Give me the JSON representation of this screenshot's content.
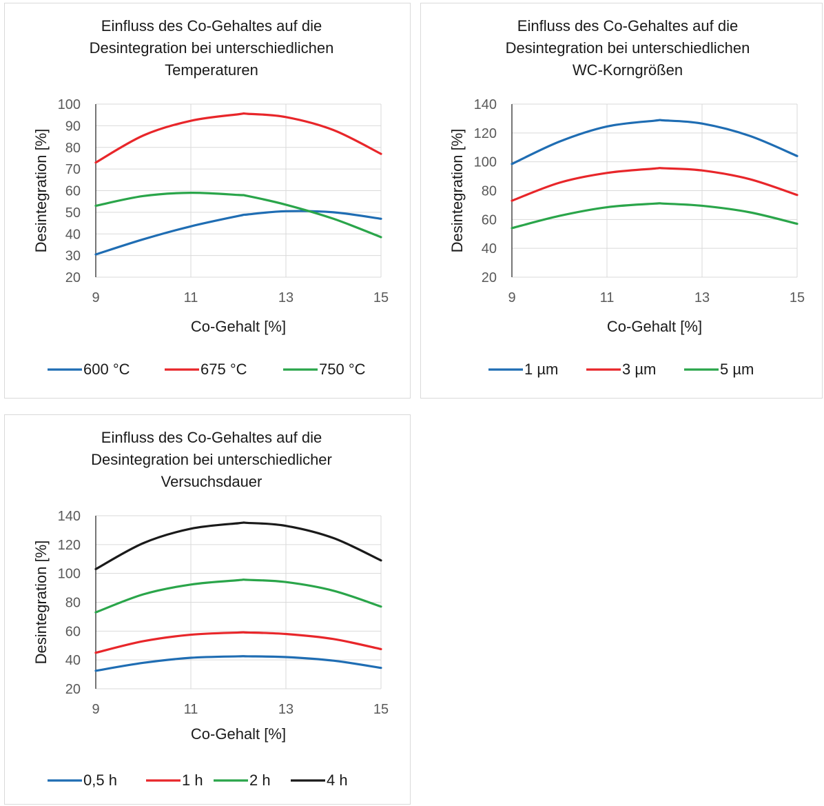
{
  "chart_data": [
    {
      "type": "line",
      "title_lines": [
        "Einfluss des Co-Gehaltes auf die",
        "Desintegration bei unterschiedlichen",
        "Temperaturen"
      ],
      "xlabel": "Co-Gehalt [%]",
      "ylabel": "Desintegration [%]",
      "xlim": [
        9,
        15
      ],
      "ylim": [
        20,
        100
      ],
      "xticks": [
        9,
        11,
        13,
        15
      ],
      "yticks": [
        20,
        30,
        40,
        50,
        60,
        70,
        80,
        90,
        100
      ],
      "grid": true,
      "legend_position": "bottom",
      "x": [
        9,
        10,
        11,
        12,
        12.2,
        13,
        14,
        15
      ],
      "series": [
        {
          "name": "600 °C",
          "color": "#1f6db3",
          "values": [
            30.5,
            37.5,
            43.5,
            48.3,
            49.0,
            50.5,
            50.0,
            47.0
          ]
        },
        {
          "name": "675 °C",
          "color": "#e8262a",
          "values": [
            73.0,
            85.5,
            92.3,
            95.3,
            95.5,
            94.0,
            88.0,
            77.0
          ]
        },
        {
          "name": "750 °C",
          "color": "#2aa54a",
          "values": [
            53.0,
            57.5,
            59.0,
            58.0,
            57.5,
            53.5,
            47.0,
            38.5
          ]
        }
      ]
    },
    {
      "type": "line",
      "title_lines": [
        "Einfluss des Co-Gehaltes auf die",
        "Desintegration bei unterschiedlichen",
        "WC-Korngrößen"
      ],
      "xlabel": "Co-Gehalt [%]",
      "ylabel": "Desintegration [%]",
      "xlim": [
        9,
        15
      ],
      "ylim": [
        20,
        140
      ],
      "xticks": [
        9,
        11,
        13,
        15
      ],
      "yticks": [
        20,
        40,
        60,
        80,
        100,
        120,
        140
      ],
      "grid": true,
      "legend_position": "bottom",
      "x": [
        9,
        10,
        11,
        12,
        12.2,
        13,
        14,
        15
      ],
      "series": [
        {
          "name": "1 µm",
          "color": "#1f6db3",
          "values": [
            98.5,
            114.0,
            124.5,
            128.5,
            128.7,
            126.5,
            118.0,
            104.0
          ]
        },
        {
          "name": "3 µm",
          "color": "#e8262a",
          "values": [
            73.0,
            85.5,
            92.3,
            95.3,
            95.5,
            94.0,
            88.0,
            77.0
          ]
        },
        {
          "name": "5 µm",
          "color": "#2aa54a",
          "values": [
            54.0,
            62.5,
            68.5,
            71.0,
            71.0,
            69.5,
            65.0,
            57.0
          ]
        }
      ]
    },
    {
      "type": "line",
      "title_lines": [
        "Einfluss des Co-Gehaltes auf die",
        "Desintegration bei unterschiedlicher",
        "Versuchsdauer"
      ],
      "xlabel": "Co-Gehalt [%]",
      "ylabel": "Desintegration [%]",
      "xlim": [
        9,
        15
      ],
      "ylim": [
        20,
        140
      ],
      "xticks": [
        9,
        11,
        13,
        15
      ],
      "yticks": [
        20,
        40,
        60,
        80,
        100,
        120,
        140
      ],
      "grid": true,
      "legend_position": "bottom",
      "x": [
        9,
        10,
        11,
        12,
        12.2,
        13,
        14,
        15
      ],
      "series": [
        {
          "name": "0,5 h",
          "color": "#1f6db3",
          "values": [
            32.5,
            38.0,
            41.5,
            42.5,
            42.5,
            42.0,
            39.5,
            34.5
          ]
        },
        {
          "name": "1 h",
          "color": "#e8262a",
          "values": [
            45.0,
            53.0,
            57.5,
            59.0,
            59.0,
            58.0,
            54.5,
            47.5
          ]
        },
        {
          "name": "2 h",
          "color": "#2aa54a",
          "values": [
            73.0,
            85.5,
            92.3,
            95.3,
            95.5,
            94.0,
            88.0,
            77.0
          ]
        },
        {
          "name": "4 h",
          "color": "#1a1a1a",
          "values": [
            103.0,
            121.0,
            131.0,
            134.8,
            135.0,
            133.0,
            124.5,
            109.0
          ]
        }
      ]
    }
  ]
}
